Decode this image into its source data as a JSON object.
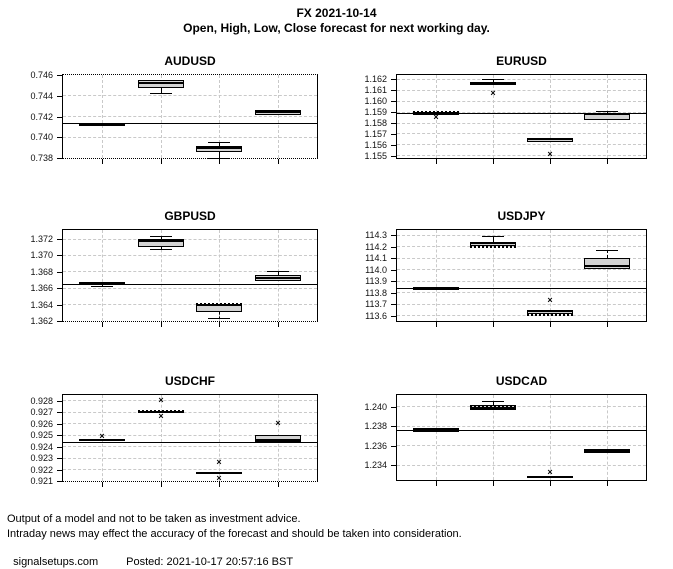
{
  "header": {
    "title": "FX 2021-10-14",
    "subtitle": "Open, High, Low, Close forecast for next working day."
  },
  "footer": {
    "line1": "Output of a model and not to be taken as investment advice.",
    "line2": "Intraday news may effect the accuracy of the forecast and should be taken into consideration.",
    "site": "signalsetups.com",
    "posted": "Posted: 2021-10-17 20:57:16 BST"
  },
  "colors": {
    "box_fill": "#d3d3d3",
    "grid": "#c9c9c9",
    "line": "#000000",
    "background": "#ffffff"
  },
  "categories": [
    "Open",
    "High",
    "Low",
    "Close"
  ],
  "chart_data": [
    {
      "type": "boxplot",
      "title": "AUDUSD",
      "ylim": [
        0.738,
        0.746
      ],
      "yticks": [
        "0.738",
        "0.740",
        "0.742",
        "0.744",
        "0.746"
      ],
      "ytick_values": [
        0.738,
        0.74,
        0.742,
        0.744,
        0.746
      ],
      "reference_line": 0.7413,
      "boxes": [
        {
          "category": "Open",
          "q1": 0.7411,
          "q3": 0.7414,
          "median": 0.7413,
          "whisker_low": null,
          "whisker_high": null,
          "dotted": null,
          "outliers": []
        },
        {
          "category": "High",
          "q1": 0.7447,
          "q3": 0.7455,
          "median": 0.7452,
          "whisker_low": 0.7442,
          "whisker_high": null,
          "dotted": null,
          "outliers": []
        },
        {
          "category": "Low",
          "q1": 0.7386,
          "q3": 0.7392,
          "median": 0.739,
          "whisker_low": 0.738,
          "whisker_high": 0.7395,
          "dotted": null,
          "outliers": []
        },
        {
          "category": "Close",
          "q1": 0.7421,
          "q3": 0.7426,
          "median": 0.7424,
          "whisker_low": null,
          "whisker_high": null,
          "dotted": null,
          "outliers": []
        }
      ]
    },
    {
      "type": "boxplot",
      "title": "EURUSD",
      "ylim": [
        1.1548,
        1.1624
      ],
      "yticks": [
        "1.155",
        "1.156",
        "1.157",
        "1.158",
        "1.159",
        "1.160",
        "1.161",
        "1.162"
      ],
      "ytick_values": [
        1.155,
        1.156,
        1.157,
        1.158,
        1.159,
        1.16,
        1.161,
        1.162
      ],
      "reference_line": 1.1589,
      "boxes": [
        {
          "category": "Open",
          "q1": 1.1587,
          "q3": 1.159,
          "median": 1.1589,
          "whisker_low": null,
          "whisker_high": null,
          "dotted": 1.159,
          "outliers": [
            1.1585
          ]
        },
        {
          "category": "High",
          "q1": 1.1615,
          "q3": 1.1618,
          "median": 1.1617,
          "whisker_low": null,
          "whisker_high": 1.162,
          "dotted": null,
          "outliers": [
            1.1607
          ]
        },
        {
          "category": "Low",
          "q1": 1.1563,
          "q3": 1.1566,
          "median": 1.1565,
          "whisker_low": null,
          "whisker_high": null,
          "dotted": null,
          "outliers": [
            1.1551
          ]
        },
        {
          "category": "Close",
          "q1": 1.1583,
          "q3": 1.1589,
          "median": 1.1588,
          "whisker_low": null,
          "whisker_high": 1.1591,
          "dotted": null,
          "outliers": []
        }
      ]
    },
    {
      "type": "boxplot",
      "title": "GBPUSD",
      "ylim": [
        1.362,
        1.3731
      ],
      "yticks": [
        "1.362",
        "1.364",
        "1.366",
        "1.368",
        "1.370",
        "1.372"
      ],
      "ytick_values": [
        1.362,
        1.364,
        1.366,
        1.368,
        1.37,
        1.372
      ],
      "reference_line": 1.3665,
      "boxes": [
        {
          "category": "Open",
          "q1": 1.3664,
          "q3": 1.3668,
          "median": 1.3666,
          "whisker_low": 1.3662,
          "whisker_high": null,
          "dotted": null,
          "outliers": []
        },
        {
          "category": "High",
          "q1": 1.371,
          "q3": 1.372,
          "median": 1.3717,
          "whisker_low": 1.3707,
          "whisker_high": 1.3723,
          "dotted": null,
          "outliers": []
        },
        {
          "category": "Low",
          "q1": 1.3631,
          "q3": 1.3641,
          "median": 1.3639,
          "whisker_low": 1.3623,
          "whisker_high": null,
          "dotted": 1.3641,
          "outliers": []
        },
        {
          "category": "Close",
          "q1": 1.3669,
          "q3": 1.3676,
          "median": 1.3672,
          "whisker_low": null,
          "whisker_high": 1.368,
          "dotted": null,
          "outliers": []
        }
      ]
    },
    {
      "type": "boxplot",
      "title": "USDJPY",
      "ylim": [
        113.555,
        114.345
      ],
      "yticks": [
        "113.6",
        "113.7",
        "113.8",
        "113.9",
        "114.0",
        "114.1",
        "114.2",
        "114.3"
      ],
      "ytick_values": [
        113.6,
        113.7,
        113.8,
        113.9,
        114.0,
        114.1,
        114.2,
        114.3
      ],
      "reference_line": 113.84,
      "boxes": [
        {
          "category": "Open",
          "q1": 113.82,
          "q3": 113.85,
          "median": 113.83,
          "whisker_low": null,
          "whisker_high": null,
          "dotted": null,
          "outliers": []
        },
        {
          "category": "High",
          "q1": 114.21,
          "q3": 114.24,
          "median": 114.23,
          "whisker_low": null,
          "whisker_high": 114.29,
          "dotted": 114.2,
          "outliers": []
        },
        {
          "category": "Low",
          "q1": 113.62,
          "q3": 113.65,
          "median": 113.64,
          "whisker_low": null,
          "whisker_high": null,
          "dotted": 113.61,
          "outliers": [
            113.73
          ]
        },
        {
          "category": "Close",
          "q1": 114.01,
          "q3": 114.1,
          "median": 114.03,
          "whisker_low": null,
          "whisker_high": 114.17,
          "dotted": null,
          "outliers": []
        }
      ]
    },
    {
      "type": "boxplot",
      "title": "USDCHF",
      "ylim": [
        0.921,
        0.9285
      ],
      "yticks": [
        "0.921",
        "0.922",
        "0.923",
        "0.924",
        "0.925",
        "0.926",
        "0.927",
        "0.928"
      ],
      "ytick_values": [
        0.921,
        0.922,
        0.923,
        0.924,
        0.925,
        0.926,
        0.927,
        0.928
      ],
      "reference_line": 0.9244,
      "boxes": [
        {
          "category": "Open",
          "q1": 0.9245,
          "q3": 0.9247,
          "median": 0.9246,
          "whisker_low": null,
          "whisker_high": null,
          "dotted": null,
          "outliers": [
            0.9248
          ]
        },
        {
          "category": "High",
          "q1": 0.9269,
          "q3": 0.9271,
          "median": 0.927,
          "whisker_low": null,
          "whisker_high": null,
          "dotted": 0.9271,
          "outliers": [
            0.928,
            0.9266
          ]
        },
        {
          "category": "Low",
          "q1": 0.9216,
          "q3": 0.9218,
          "median": 0.9217,
          "whisker_low": null,
          "whisker_high": null,
          "dotted": null,
          "outliers": [
            0.9226,
            0.9212
          ]
        },
        {
          "category": "Close",
          "q1": 0.9244,
          "q3": 0.925,
          "median": 0.9246,
          "whisker_low": null,
          "whisker_high": null,
          "dotted": null,
          "outliers": [
            0.926
          ]
        }
      ]
    },
    {
      "type": "boxplot",
      "title": "USDCAD",
      "ylim": [
        1.2325,
        1.2412
      ],
      "yticks": [
        "1.234",
        "1.236",
        "1.238",
        "1.240"
      ],
      "ytick_values": [
        1.234,
        1.236,
        1.238,
        1.24
      ],
      "reference_line": 1.2376,
      "boxes": [
        {
          "category": "Open",
          "q1": 1.2374,
          "q3": 1.2378,
          "median": 1.2376,
          "whisker_low": null,
          "whisker_high": null,
          "dotted": null,
          "outliers": []
        },
        {
          "category": "High",
          "q1": 1.2397,
          "q3": 1.2402,
          "median": 1.2399,
          "whisker_low": null,
          "whisker_high": 1.2405,
          "dotted": 1.24,
          "outliers": []
        },
        {
          "category": "Low",
          "q1": 1.2327,
          "q3": 1.2329,
          "median": 1.2328,
          "whisker_low": null,
          "whisker_high": null,
          "dotted": null,
          "outliers": [
            1.2332
          ]
        },
        {
          "category": "Close",
          "q1": 1.2353,
          "q3": 1.2357,
          "median": 1.2355,
          "whisker_low": null,
          "whisker_high": null,
          "dotted": null,
          "outliers": []
        }
      ]
    }
  ]
}
